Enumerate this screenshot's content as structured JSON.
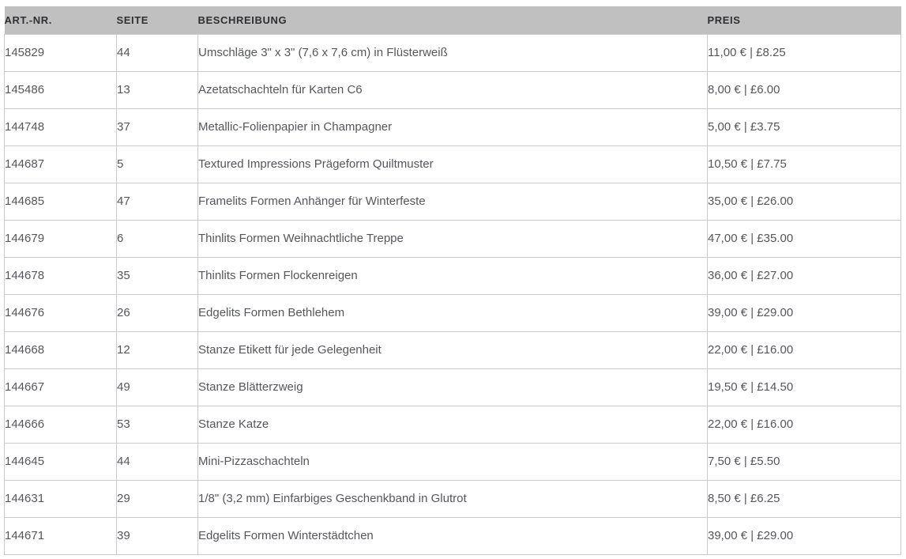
{
  "table": {
    "columns": [
      {
        "key": "art_nr",
        "label": "ART.-NR."
      },
      {
        "key": "seite",
        "label": "SEITE"
      },
      {
        "key": "beschreibung",
        "label": "BESCHREIBUNG"
      },
      {
        "key": "preis",
        "label": "PREIS"
      }
    ],
    "rows": [
      {
        "art_nr": "145829",
        "seite": "44",
        "beschreibung": "Umschläge 3\" x 3\" (7,6 x 7,6 cm) in Flüsterweiß",
        "preis": "11,00 € | £8.25"
      },
      {
        "art_nr": "145486",
        "seite": "13",
        "beschreibung": "Azetatschachteln für Karten C6",
        "preis": "8,00 € | £6.00"
      },
      {
        "art_nr": "144748",
        "seite": "37",
        "beschreibung": "Metallic-Folienpapier in Champagner",
        "preis": "5,00 € | £3.75"
      },
      {
        "art_nr": "144687",
        "seite": "5",
        "beschreibung": "Textured Impressions Prägeform Quiltmuster",
        "preis": "10,50 € | £7.75"
      },
      {
        "art_nr": "144685",
        "seite": "47",
        "beschreibung": "Framelits Formen Anhänger für Winterfeste",
        "preis": "35,00 € | £26.00"
      },
      {
        "art_nr": "144679",
        "seite": "6",
        "beschreibung": "Thinlits Formen Weihnachtliche Treppe",
        "preis": "47,00 € | £35.00"
      },
      {
        "art_nr": "144678",
        "seite": "35",
        "beschreibung": "Thinlits Formen Flockenreigen",
        "preis": "36,00 € | £27.00"
      },
      {
        "art_nr": "144676",
        "seite": "26",
        "beschreibung": "Edgelits Formen Bethlehem",
        "preis": "39,00 € | £29.00"
      },
      {
        "art_nr": "144668",
        "seite": "12",
        "beschreibung": "Stanze Etikett für jede Gelegenheit",
        "preis": "22,00 € | £16.00"
      },
      {
        "art_nr": "144667",
        "seite": "49",
        "beschreibung": "Stanze Blätterzweig",
        "preis": "19,50 € | £14.50"
      },
      {
        "art_nr": "144666",
        "seite": "53",
        "beschreibung": "Stanze Katze",
        "preis": "22,00 € | £16.00"
      },
      {
        "art_nr": "144645",
        "seite": "44",
        "beschreibung": "Mini-Pizzaschachteln",
        "preis": "7,50 € | £5.50"
      },
      {
        "art_nr": "144631",
        "seite": "29",
        "beschreibung": "1/8\" (3,2 mm) Einfarbiges Geschenkband in Glutrot",
        "preis": "8,50 € | £6.25"
      },
      {
        "art_nr": "144671",
        "seite": "39",
        "beschreibung": "Edgelits Formen Winterstädtchen",
        "preis": "39,00 € | £29.00"
      }
    ]
  },
  "colors": {
    "header_bg": "#c1c0c0",
    "header_text": "#2e2f32",
    "body_text": "#55575c",
    "border": "#cbcbcb",
    "background": "#ffffff"
  }
}
